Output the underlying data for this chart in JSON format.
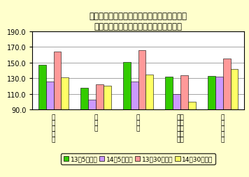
{
  "title1": "図２　産業別きまって支給する現金給与額の",
  "title2": "事業所規模間格差（１～４人＝１００）",
  "categories": [
    "調\n査\n産\n業\n計",
    "建\n設\n業",
    "製\n造\n業",
    "業卸\n・売\n飲・\n食小\n店売",
    "サ\nー\nビ\nス\n業"
  ],
  "series": [
    {
      "label": "13年5人以上",
      "color": "#33cc00",
      "values": [
        147,
        118,
        151,
        132,
        133
      ]
    },
    {
      "label": "14年5人以上",
      "color": "#cc99ff",
      "values": [
        126,
        103,
        126,
        110,
        132
      ]
    },
    {
      "label": "13年30人以上",
      "color": "#ff9999",
      "values": [
        164,
        122,
        166,
        134,
        155
      ]
    },
    {
      "label": "14年30人以上",
      "color": "#ffff66",
      "values": [
        131,
        120,
        135,
        100,
        142
      ]
    }
  ],
  "ylim": [
    90,
    190
  ],
  "yticks": [
    90.0,
    110.0,
    130.0,
    150.0,
    170.0,
    190.0
  ],
  "background_color": "#ffffcc",
  "plot_bg_color": "#ffffff",
  "title_fontsize": 8.5,
  "tick_fontsize": 7,
  "legend_fontsize": 6.5
}
